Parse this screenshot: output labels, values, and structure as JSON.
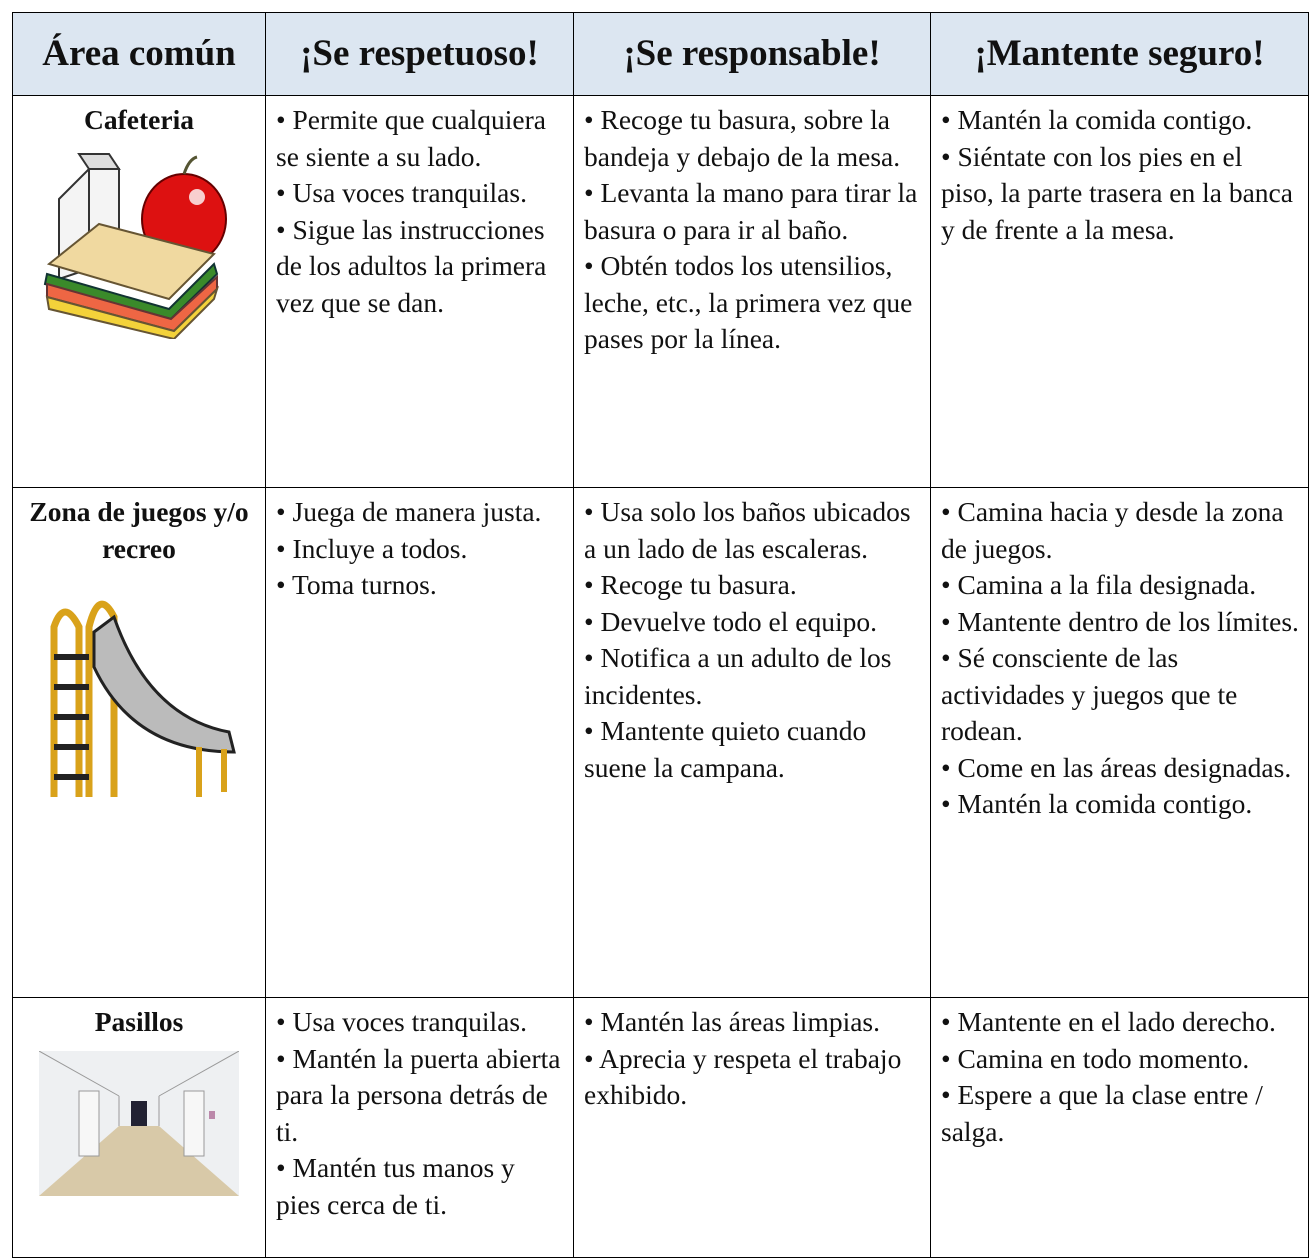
{
  "table": {
    "header": [
      "Área común",
      "¡Se respetuoso!",
      "¡Se responsable!",
      "¡Mantente seguro!"
    ],
    "rows": [
      {
        "area": "Cafeteria",
        "cells": [
          [
            "• Permite que cualquiera se siente a su lado.",
            "• Usa voces tranquilas.",
            "• Sigue las instrucciones de los adultos la primera vez que se dan."
          ],
          [
            "• Recoge tu basura, sobre la bandeja y debajo de la mesa.",
            "• Levanta la mano para tirar la basura o para ir al baño.",
            "• Obtén todos los utensilios, leche, etc., la primera vez que pases por la línea."
          ],
          [
            "• Mantén la comida contigo.",
            "• Siéntate con los pies en el piso, la parte trasera en la banca y de frente a la mesa."
          ]
        ]
      },
      {
        "area": "Zona de juegos y/o recreo",
        "cells": [
          [
            "• Juega de manera justa.",
            "• Incluye a todos.",
            "• Toma turnos."
          ],
          [
            "• Usa solo los baños ubicados a un lado de las escaleras.",
            "• Recoge tu basura.",
            "• Devuelve todo el equipo.",
            "• Notifica a un adulto de los incidentes.",
            "• Mantente quieto cuando suene la campana."
          ],
          [
            "• Camina hacia y desde la zona de juegos.",
            "• Camina a la fila designada.",
            "• Mantente dentro de los límites.",
            "• Sé consciente de las actividades y juegos que te rodean.",
            "• Come en las áreas designadas.",
            "• Mantén la comida contigo."
          ]
        ]
      },
      {
        "area": "Pasillos",
        "cells": [
          [
            "• Usa voces tranquilas.",
            "• Mantén la puerta abierta para la persona detrás de ti.",
            "• Mantén tus manos y pies cerca de ti."
          ],
          [
            "• Mantén las áreas limpias.",
            "• Aprecia y respeta el trabajo exhibido."
          ],
          [
            "• Mantente en el lado derecho.",
            "• Camina en todo momento.",
            "• Espere a que la clase entre / salga."
          ]
        ]
      }
    ]
  }
}
